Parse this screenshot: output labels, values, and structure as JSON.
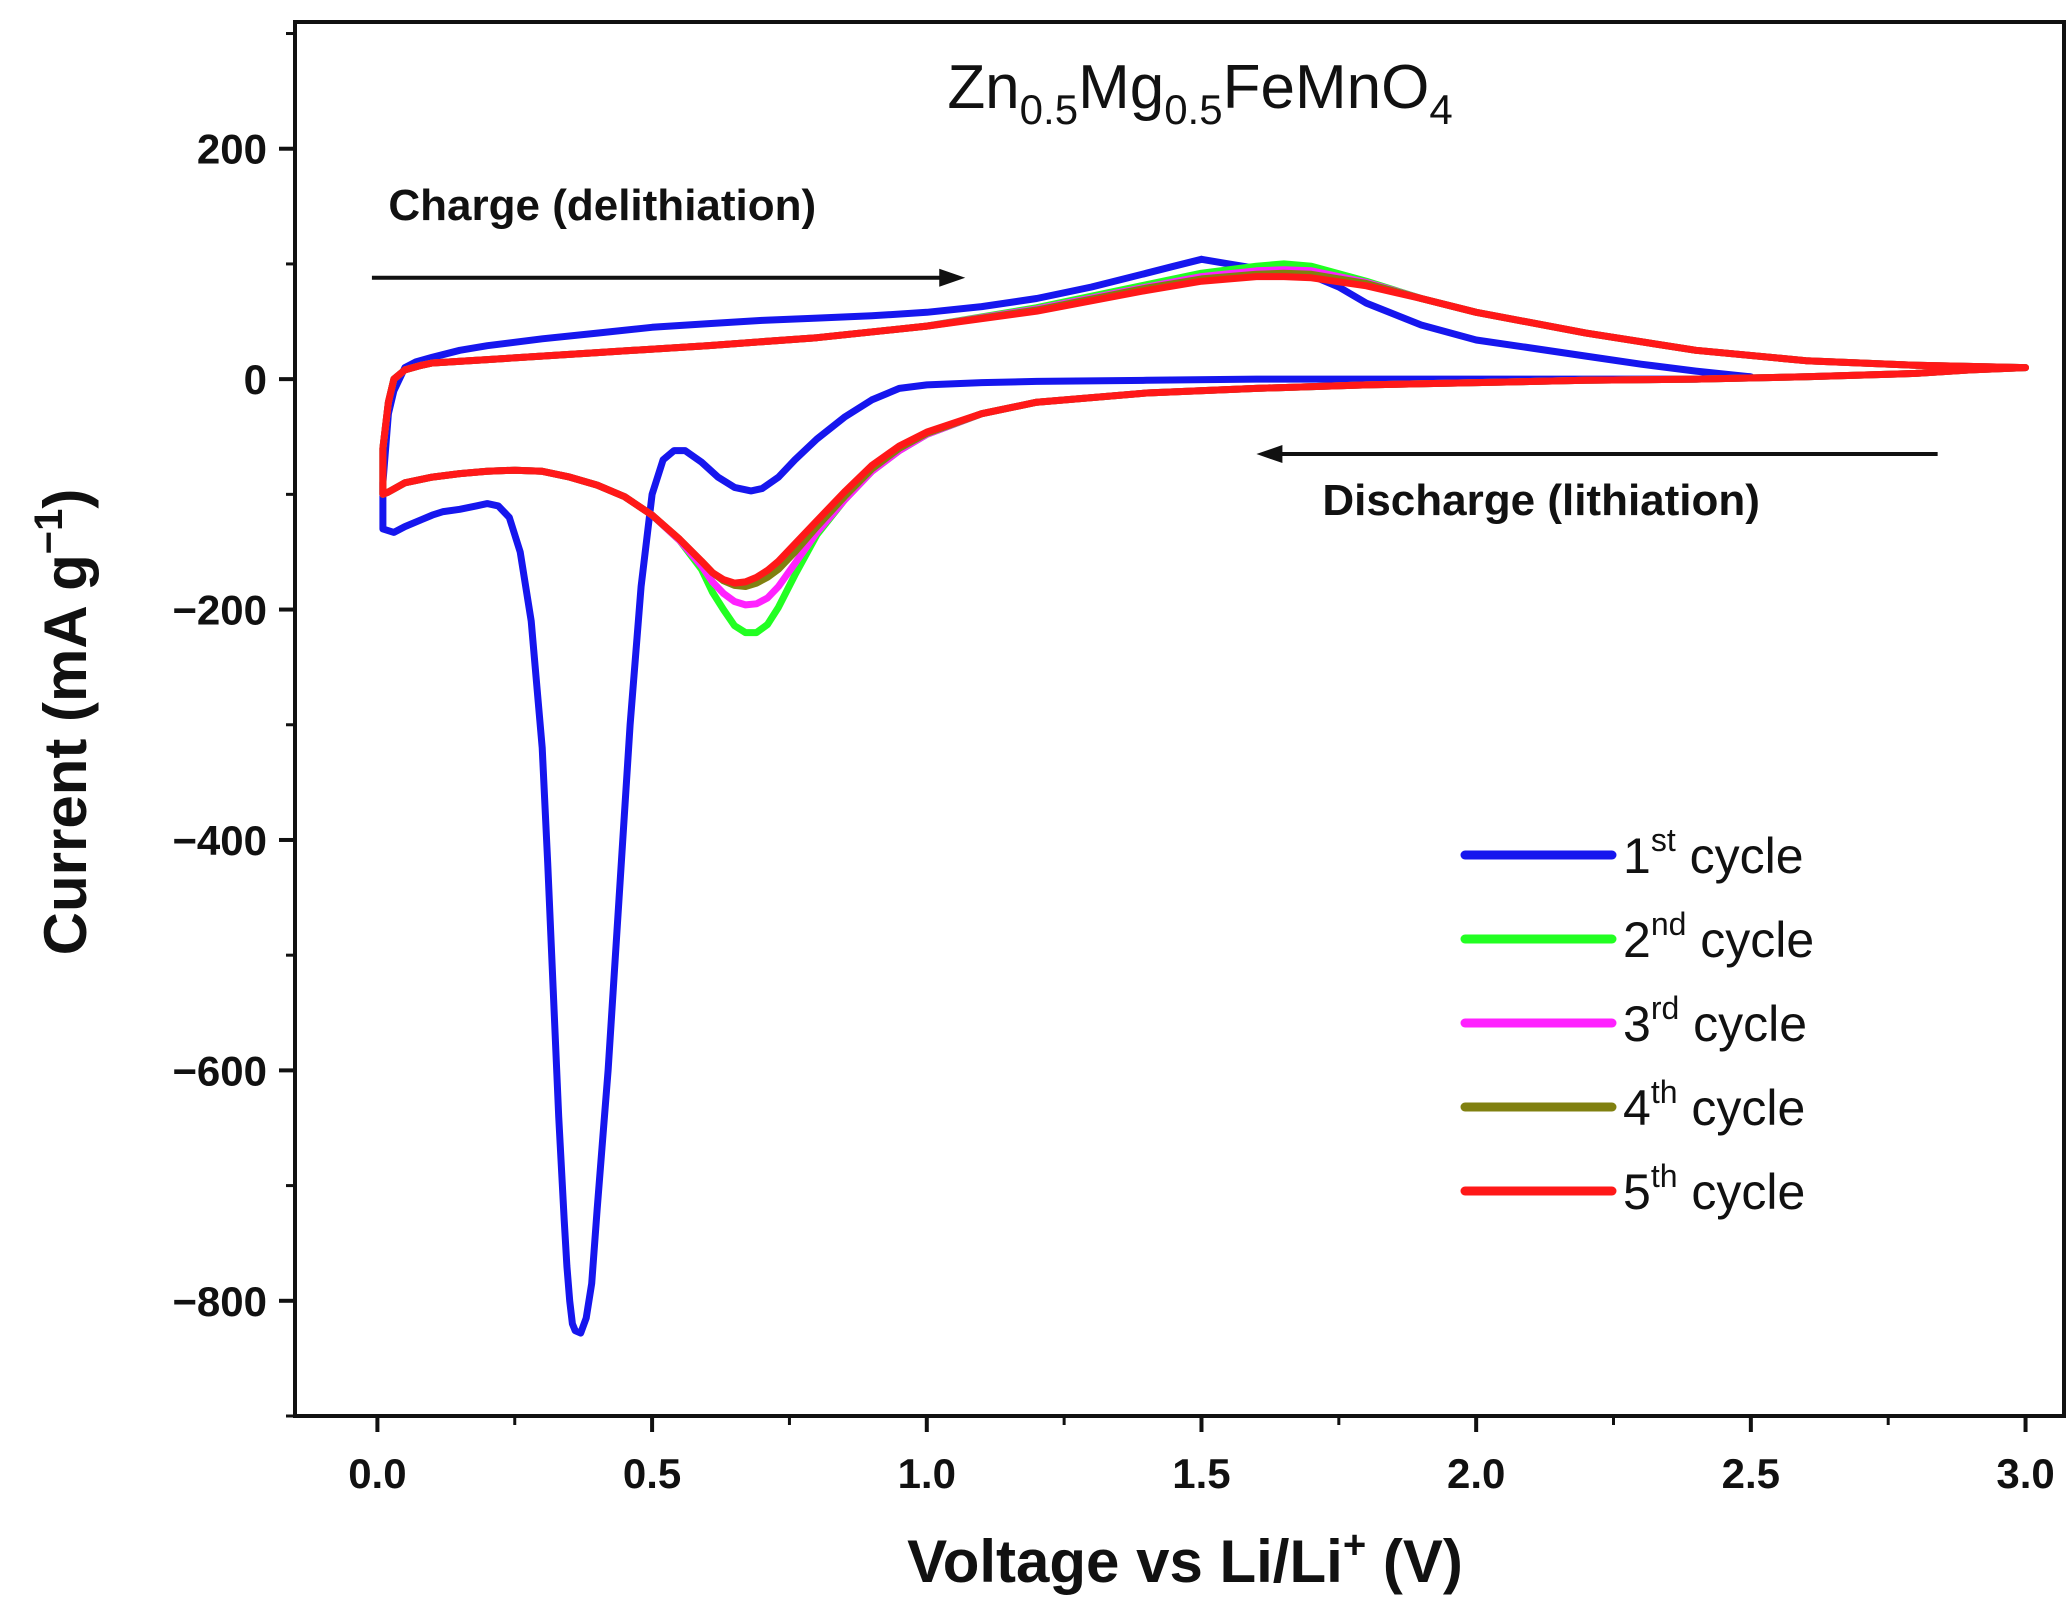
{
  "chart_data": {
    "type": "line",
    "title": {
      "base": "Zn",
      "sub1": "0.5",
      "mid": "Mg",
      "sub2": "0.5",
      "tail": "FeMnO",
      "sub3": "4"
    },
    "xlabel": {
      "pre": "Voltage vs Li/Li",
      "sup": "+",
      "post": " (V)"
    },
    "ylabel": {
      "pre": "Current (mA g",
      "sup": "−1",
      "post": ")"
    },
    "xlim": [
      -0.15,
      3.07
    ],
    "ylim": [
      -900,
      310
    ],
    "xticks": [
      {
        "value": 0.0,
        "label": "0.0"
      },
      {
        "value": 0.5,
        "label": "0.5"
      },
      {
        "value": 1.0,
        "label": "1.0"
      },
      {
        "value": 1.5,
        "label": "1.5"
      },
      {
        "value": 2.0,
        "label": "2.0"
      },
      {
        "value": 2.5,
        "label": "2.5"
      },
      {
        "value": 3.0,
        "label": "3.0"
      }
    ],
    "yticks": [
      {
        "value": 200,
        "label": "200"
      },
      {
        "value": 0,
        "label": "0"
      },
      {
        "value": -200,
        "label": "−200"
      },
      {
        "value": -400,
        "label": "−400"
      },
      {
        "value": -600,
        "label": "−600"
      },
      {
        "value": -800,
        "label": "−800"
      }
    ],
    "annotations": {
      "charge": {
        "text": "Charge (delithiation)",
        "x": 0.02,
        "y": 138,
        "arrow_from": [
          -0.01,
          88
        ],
        "arrow_to": [
          1.07,
          88
        ]
      },
      "discharge": {
        "text": "Discharge (lithiation)",
        "x": 1.72,
        "y": -118,
        "arrow_from": [
          2.84,
          -65
        ],
        "arrow_to": [
          1.6,
          -65
        ]
      }
    },
    "series": [
      {
        "name": "1st cycle",
        "num": "1",
        "sup": "st",
        "suffix": " cycle",
        "color": "#1616ee",
        "x": [
          1.5,
          1.55,
          1.6,
          1.65,
          1.7,
          1.75,
          1.8,
          1.9,
          2.0,
          2.1,
          2.2,
          2.3,
          2.4,
          2.5,
          2.4,
          2.2,
          2.0,
          1.8,
          1.6,
          1.4,
          1.2,
          1.1,
          1.0,
          0.95,
          0.9,
          0.85,
          0.8,
          0.76,
          0.73,
          0.7,
          0.68,
          0.65,
          0.62,
          0.59,
          0.56,
          0.54,
          0.52,
          0.5,
          0.48,
          0.46,
          0.44,
          0.42,
          0.4,
          0.39,
          0.38,
          0.37,
          0.36,
          0.355,
          0.35,
          0.345,
          0.34,
          0.33,
          0.32,
          0.31,
          0.3,
          0.28,
          0.26,
          0.24,
          0.22,
          0.2,
          0.18,
          0.15,
          0.12,
          0.1,
          0.08,
          0.05,
          0.03,
          0.01,
          0.01,
          0.02,
          0.03,
          0.04,
          0.05,
          0.07,
          0.1,
          0.15,
          0.2,
          0.3,
          0.4,
          0.5,
          0.6,
          0.7,
          0.8,
          0.9,
          1.0,
          1.1,
          1.2,
          1.3,
          1.4,
          1.45,
          1.5
        ],
        "y": [
          104,
          100,
          96,
          94,
          90,
          80,
          66,
          47,
          34,
          27,
          20,
          13,
          7,
          2,
          0,
          0,
          0,
          0,
          0,
          -1,
          -2,
          -3,
          -5,
          -8,
          -18,
          -33,
          -52,
          -70,
          -85,
          -95,
          -97,
          -94,
          -85,
          -72,
          -62,
          -62,
          -70,
          -100,
          -180,
          -300,
          -450,
          -600,
          -720,
          -785,
          -815,
          -828,
          -826,
          -820,
          -800,
          -770,
          -730,
          -640,
          -530,
          -420,
          -320,
          -210,
          -150,
          -120,
          -110,
          -108,
          -110,
          -113,
          -115,
          -118,
          -122,
          -128,
          -133,
          -130,
          -90,
          -30,
          -10,
          0,
          10,
          15,
          19,
          25,
          29,
          35,
          40,
          45,
          48,
          51,
          53,
          55,
          58,
          63,
          70,
          80,
          92,
          98,
          104
        ]
      },
      {
        "name": "2nd cycle",
        "num": "2",
        "sup": "nd",
        "suffix": " cycle",
        "color": "#22ff22",
        "x": [
          3.0,
          2.9,
          2.8,
          2.6,
          2.4,
          2.2,
          2.0,
          1.8,
          1.6,
          1.4,
          1.2,
          1.1,
          1.0,
          0.95,
          0.9,
          0.85,
          0.8,
          0.76,
          0.73,
          0.71,
          0.69,
          0.67,
          0.65,
          0.63,
          0.61,
          0.59,
          0.55,
          0.5,
          0.45,
          0.4,
          0.35,
          0.3,
          0.25,
          0.2,
          0.15,
          0.1,
          0.05,
          0.02,
          0.01,
          0.01,
          0.02,
          0.03,
          0.05,
          0.08,
          0.1,
          0.2,
          0.4,
          0.6,
          0.8,
          1.0,
          1.2,
          1.4,
          1.5,
          1.6,
          1.65,
          1.7,
          1.8,
          1.9,
          2.0,
          2.2,
          2.4,
          2.6,
          2.8,
          3.0
        ],
        "y": [
          10,
          8,
          5,
          2,
          0,
          -1,
          -3,
          -5,
          -8,
          -12,
          -20,
          -30,
          -48,
          -62,
          -80,
          -105,
          -135,
          -170,
          -198,
          -213,
          -220,
          -220,
          -214,
          -200,
          -185,
          -165,
          -140,
          -118,
          -102,
          -92,
          -85,
          -80,
          -79,
          -80,
          -82,
          -85,
          -90,
          -98,
          -100,
          -60,
          -20,
          0,
          8,
          12,
          14,
          17,
          23,
          29,
          36,
          46,
          62,
          82,
          92,
          98,
          100,
          98,
          85,
          70,
          58,
          40,
          25,
          16,
          12,
          10
        ]
      },
      {
        "name": "3rd cycle",
        "num": "3",
        "sup": "rd",
        "suffix": " cycle",
        "color": "#ff22ff",
        "x": [
          3.0,
          2.9,
          2.8,
          2.6,
          2.4,
          2.2,
          2.0,
          1.8,
          1.6,
          1.4,
          1.2,
          1.1,
          1.0,
          0.95,
          0.9,
          0.85,
          0.8,
          0.76,
          0.73,
          0.71,
          0.69,
          0.67,
          0.65,
          0.63,
          0.61,
          0.59,
          0.55,
          0.5,
          0.45,
          0.4,
          0.35,
          0.3,
          0.25,
          0.2,
          0.15,
          0.1,
          0.05,
          0.02,
          0.01,
          0.01,
          0.02,
          0.03,
          0.05,
          0.08,
          0.1,
          0.2,
          0.4,
          0.6,
          0.8,
          1.0,
          1.2,
          1.4,
          1.5,
          1.6,
          1.65,
          1.7,
          1.8,
          1.9,
          2.0,
          2.2,
          2.4,
          2.6,
          2.8,
          3.0
        ],
        "y": [
          10,
          8,
          5,
          2,
          0,
          -1,
          -3,
          -5,
          -8,
          -12,
          -20,
          -30,
          -48,
          -62,
          -80,
          -105,
          -133,
          -160,
          -180,
          -190,
          -195,
          -196,
          -193,
          -186,
          -176,
          -162,
          -140,
          -118,
          -102,
          -92,
          -85,
          -80,
          -79,
          -80,
          -82,
          -85,
          -90,
          -98,
          -100,
          -60,
          -20,
          0,
          8,
          12,
          14,
          17,
          23,
          29,
          36,
          46,
          61,
          80,
          89,
          94,
          95,
          94,
          84,
          70,
          58,
          40,
          25,
          16,
          12,
          10
        ]
      },
      {
        "name": "4th cycle",
        "num": "4",
        "sup": "th",
        "suffix": " cycle",
        "color": "#808010",
        "x": [
          3.0,
          2.9,
          2.8,
          2.6,
          2.4,
          2.2,
          2.0,
          1.8,
          1.6,
          1.4,
          1.2,
          1.1,
          1.0,
          0.95,
          0.9,
          0.85,
          0.8,
          0.76,
          0.73,
          0.71,
          0.69,
          0.67,
          0.65,
          0.63,
          0.61,
          0.59,
          0.55,
          0.5,
          0.45,
          0.4,
          0.35,
          0.3,
          0.25,
          0.2,
          0.15,
          0.1,
          0.05,
          0.02,
          0.01,
          0.01,
          0.02,
          0.03,
          0.05,
          0.08,
          0.1,
          0.2,
          0.4,
          0.6,
          0.8,
          1.0,
          1.2,
          1.4,
          1.5,
          1.6,
          1.65,
          1.7,
          1.8,
          1.9,
          2.0,
          2.2,
          2.4,
          2.6,
          2.8,
          3.0
        ],
        "y": [
          10,
          8,
          5,
          2,
          0,
          -1,
          -3,
          -5,
          -8,
          -12,
          -20,
          -30,
          -47,
          -60,
          -78,
          -102,
          -128,
          -150,
          -165,
          -172,
          -177,
          -180,
          -179,
          -175,
          -168,
          -158,
          -139,
          -118,
          -102,
          -92,
          -85,
          -80,
          -79,
          -80,
          -82,
          -85,
          -90,
          -98,
          -100,
          -60,
          -20,
          0,
          8,
          12,
          14,
          17,
          23,
          29,
          36,
          46,
          60,
          79,
          87,
          91,
          92,
          91,
          83,
          70,
          58,
          40,
          25,
          16,
          12,
          10
        ]
      },
      {
        "name": "5th cycle",
        "num": "5",
        "sup": "th",
        "suffix": " cycle",
        "color": "#ff1818",
        "x": [
          3.0,
          2.9,
          2.8,
          2.6,
          2.4,
          2.2,
          2.0,
          1.8,
          1.6,
          1.4,
          1.2,
          1.1,
          1.0,
          0.95,
          0.9,
          0.85,
          0.8,
          0.76,
          0.73,
          0.71,
          0.69,
          0.67,
          0.65,
          0.63,
          0.61,
          0.59,
          0.55,
          0.5,
          0.45,
          0.4,
          0.35,
          0.3,
          0.25,
          0.2,
          0.15,
          0.1,
          0.05,
          0.02,
          0.01,
          0.01,
          0.02,
          0.03,
          0.05,
          0.08,
          0.1,
          0.2,
          0.4,
          0.6,
          0.8,
          1.0,
          1.2,
          1.4,
          1.5,
          1.6,
          1.65,
          1.7,
          1.8,
          1.9,
          2.0,
          2.2,
          2.4,
          2.6,
          2.8,
          3.0
        ],
        "y": [
          10,
          8,
          5,
          2,
          0,
          -1,
          -3,
          -5,
          -8,
          -12,
          -20,
          -30,
          -46,
          -58,
          -75,
          -98,
          -123,
          -143,
          -158,
          -166,
          -172,
          -176,
          -177,
          -174,
          -168,
          -158,
          -139,
          -118,
          -102,
          -92,
          -85,
          -80,
          -79,
          -80,
          -82,
          -85,
          -90,
          -98,
          -100,
          -60,
          -20,
          0,
          8,
          12,
          14,
          17,
          23,
          29,
          36,
          46,
          59,
          77,
          85,
          89,
          89,
          88,
          81,
          70,
          58,
          40,
          25,
          16,
          12,
          10
        ]
      }
    ]
  }
}
